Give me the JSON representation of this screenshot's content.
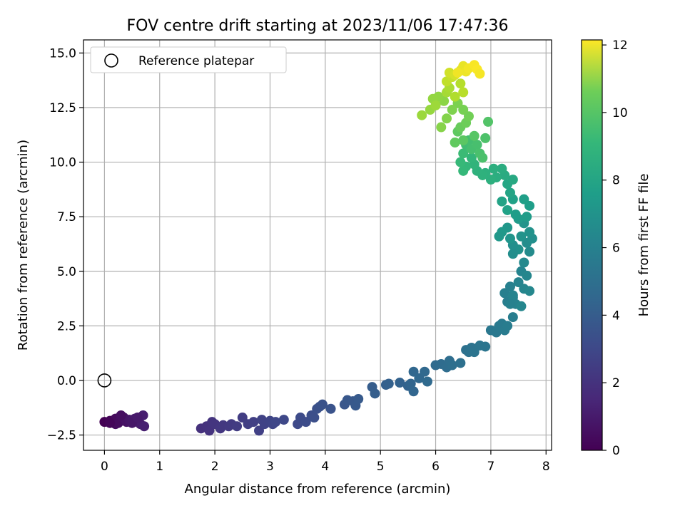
{
  "chart_data": {
    "type": "scatter",
    "title": "FOV centre drift starting at 2023/11/06 17:47:36",
    "xlabel": "Angular distance from reference (arcmin)",
    "ylabel": "Rotation from reference (arcmin)",
    "xlim": [
      -0.38,
      8.1
    ],
    "ylim": [
      -3.2,
      15.6
    ],
    "xticks": [
      0,
      1,
      2,
      3,
      4,
      5,
      6,
      7,
      8
    ],
    "yticks": [
      -2.5,
      0.0,
      2.5,
      5.0,
      7.5,
      10.0,
      12.5,
      15.0
    ],
    "xtick_labels": [
      "0",
      "1",
      "2",
      "3",
      "4",
      "5",
      "6",
      "7",
      "8"
    ],
    "ytick_labels": [
      "−2.5",
      "0.0",
      "2.5",
      "5.0",
      "7.5",
      "10.0",
      "12.5",
      "15.0"
    ],
    "grid": true,
    "legend": {
      "position": "upper-left",
      "entries": [
        "Reference platepar"
      ]
    },
    "reference_point": {
      "x": 0.0,
      "y": 0.0,
      "marker": "open-circle"
    },
    "colorbar": {
      "label": "Hours from first FF file",
      "colormap": "viridis",
      "range": [
        0,
        12.15
      ],
      "ticks": [
        0,
        2,
        4,
        6,
        8,
        10,
        12
      ],
      "tick_labels": [
        "0",
        "2",
        "4",
        "6",
        "8",
        "10",
        "12"
      ]
    },
    "series": [
      {
        "points": [
          {
            "x": 0.0,
            "y": -1.9,
            "c": 0.0
          },
          {
            "x": 0.1,
            "y": -1.85,
            "c": 0.1
          },
          {
            "x": 0.15,
            "y": -1.9,
            "c": 0.2
          },
          {
            "x": 0.2,
            "y": -1.75,
            "c": 0.3
          },
          {
            "x": 0.25,
            "y": -1.95,
            "c": 0.4
          },
          {
            "x": 0.3,
            "y": -1.8,
            "c": 0.5
          },
          {
            "x": 0.35,
            "y": -1.7,
            "c": 0.55
          },
          {
            "x": 0.4,
            "y": -1.9,
            "c": 0.6
          },
          {
            "x": 0.45,
            "y": -1.8,
            "c": 0.7
          },
          {
            "x": 0.5,
            "y": -1.85,
            "c": 0.8
          },
          {
            "x": 0.55,
            "y": -1.75,
            "c": 0.85
          },
          {
            "x": 0.6,
            "y": -1.9,
            "c": 0.9
          },
          {
            "x": 0.65,
            "y": -2.0,
            "c": 0.95
          },
          {
            "x": 0.7,
            "y": -1.6,
            "c": 1.0
          },
          {
            "x": 0.72,
            "y": -2.1,
            "c": 1.05
          },
          {
            "x": 0.2,
            "y": -2.0,
            "c": 0.35
          },
          {
            "x": 0.3,
            "y": -1.6,
            "c": 0.45
          },
          {
            "x": 0.5,
            "y": -1.95,
            "c": 0.75
          },
          {
            "x": 0.6,
            "y": -1.7,
            "c": 0.88
          },
          {
            "x": 0.1,
            "y": -1.95,
            "c": 0.15
          },
          {
            "x": 1.75,
            "y": -2.2,
            "c": 1.7
          },
          {
            "x": 1.85,
            "y": -2.1,
            "c": 1.75
          },
          {
            "x": 1.9,
            "y": -2.3,
            "c": 1.8
          },
          {
            "x": 1.95,
            "y": -1.9,
            "c": 1.85
          },
          {
            "x": 2.0,
            "y": -2.0,
            "c": 1.9
          },
          {
            "x": 2.1,
            "y": -2.2,
            "c": 1.95
          },
          {
            "x": 2.15,
            "y": -2.05,
            "c": 2.0
          },
          {
            "x": 2.25,
            "y": -2.1,
            "c": 2.05
          },
          {
            "x": 2.3,
            "y": -2.0,
            "c": 2.1
          },
          {
            "x": 2.4,
            "y": -2.1,
            "c": 2.15
          },
          {
            "x": 2.5,
            "y": -1.7,
            "c": 2.2
          },
          {
            "x": 2.6,
            "y": -2.0,
            "c": 2.25
          },
          {
            "x": 2.7,
            "y": -1.9,
            "c": 2.3
          },
          {
            "x": 2.8,
            "y": -2.3,
            "c": 2.35
          },
          {
            "x": 2.85,
            "y": -1.8,
            "c": 2.4
          },
          {
            "x": 2.9,
            "y": -2.0,
            "c": 2.45
          },
          {
            "x": 3.0,
            "y": -1.85,
            "c": 2.5
          },
          {
            "x": 3.05,
            "y": -2.0,
            "c": 2.55
          },
          {
            "x": 3.1,
            "y": -1.9,
            "c": 2.6
          },
          {
            "x": 3.25,
            "y": -1.8,
            "c": 2.65
          },
          {
            "x": 3.5,
            "y": -2.0,
            "c": 2.75
          },
          {
            "x": 3.55,
            "y": -1.7,
            "c": 2.8
          },
          {
            "x": 3.65,
            "y": -1.9,
            "c": 2.85
          },
          {
            "x": 3.75,
            "y": -1.6,
            "c": 2.9
          },
          {
            "x": 3.8,
            "y": -1.7,
            "c": 2.95
          },
          {
            "x": 3.85,
            "y": -1.3,
            "c": 3.0
          },
          {
            "x": 3.9,
            "y": -1.2,
            "c": 3.05
          },
          {
            "x": 3.95,
            "y": -1.1,
            "c": 3.1
          },
          {
            "x": 4.1,
            "y": -1.3,
            "c": 3.15
          },
          {
            "x": 4.35,
            "y": -1.1,
            "c": 3.25
          },
          {
            "x": 4.4,
            "y": -0.9,
            "c": 3.3
          },
          {
            "x": 4.5,
            "y": -0.95,
            "c": 3.35
          },
          {
            "x": 4.55,
            "y": -1.15,
            "c": 3.4
          },
          {
            "x": 4.6,
            "y": -0.85,
            "c": 3.45
          },
          {
            "x": 4.85,
            "y": -0.3,
            "c": 3.55
          },
          {
            "x": 4.9,
            "y": -0.6,
            "c": 3.6
          },
          {
            "x": 5.1,
            "y": -0.2,
            "c": 3.7
          },
          {
            "x": 5.15,
            "y": -0.15,
            "c": 3.75
          },
          {
            "x": 5.35,
            "y": -0.1,
            "c": 3.8
          },
          {
            "x": 5.5,
            "y": -0.25,
            "c": 3.85
          },
          {
            "x": 5.55,
            "y": -0.15,
            "c": 3.9
          },
          {
            "x": 5.6,
            "y": -0.5,
            "c": 3.95
          },
          {
            "x": 5.6,
            "y": 0.4,
            "c": 4.0
          },
          {
            "x": 5.7,
            "y": 0.1,
            "c": 4.05
          },
          {
            "x": 5.8,
            "y": 0.4,
            "c": 4.1
          },
          {
            "x": 5.85,
            "y": -0.05,
            "c": 4.15
          },
          {
            "x": 6.0,
            "y": 0.7,
            "c": 4.2
          },
          {
            "x": 6.1,
            "y": 0.75,
            "c": 4.25
          },
          {
            "x": 6.2,
            "y": 0.6,
            "c": 4.3
          },
          {
            "x": 6.25,
            "y": 0.9,
            "c": 4.35
          },
          {
            "x": 6.3,
            "y": 0.7,
            "c": 4.4
          },
          {
            "x": 6.45,
            "y": 0.8,
            "c": 4.45
          },
          {
            "x": 6.55,
            "y": 1.4,
            "c": 4.5
          },
          {
            "x": 6.6,
            "y": 1.3,
            "c": 4.55
          },
          {
            "x": 6.65,
            "y": 1.5,
            "c": 4.6
          },
          {
            "x": 6.7,
            "y": 1.3,
            "c": 4.65
          },
          {
            "x": 6.8,
            "y": 1.6,
            "c": 4.7
          },
          {
            "x": 6.9,
            "y": 1.55,
            "c": 4.75
          },
          {
            "x": 7.0,
            "y": 2.3,
            "c": 4.85
          },
          {
            "x": 7.1,
            "y": 2.2,
            "c": 4.9
          },
          {
            "x": 7.15,
            "y": 2.5,
            "c": 4.95
          },
          {
            "x": 7.2,
            "y": 2.6,
            "c": 5.0
          },
          {
            "x": 7.25,
            "y": 2.3,
            "c": 5.05
          },
          {
            "x": 7.3,
            "y": 2.5,
            "c": 5.1
          },
          {
            "x": 7.4,
            "y": 2.9,
            "c": 5.15
          },
          {
            "x": 7.3,
            "y": 3.6,
            "c": 5.2
          },
          {
            "x": 7.25,
            "y": 4.0,
            "c": 5.25
          },
          {
            "x": 7.35,
            "y": 4.3,
            "c": 5.3
          },
          {
            "x": 7.4,
            "y": 3.8,
            "c": 5.35
          },
          {
            "x": 7.45,
            "y": 3.5,
            "c": 5.4
          },
          {
            "x": 7.5,
            "y": 4.5,
            "c": 5.45
          },
          {
            "x": 7.55,
            "y": 5.0,
            "c": 5.5
          },
          {
            "x": 7.6,
            "y": 4.2,
            "c": 5.55
          },
          {
            "x": 7.65,
            "y": 4.8,
            "c": 5.6
          },
          {
            "x": 7.7,
            "y": 4.1,
            "c": 5.65
          },
          {
            "x": 7.55,
            "y": 3.4,
            "c": 5.6
          },
          {
            "x": 7.4,
            "y": 3.9,
            "c": 5.45
          },
          {
            "x": 7.35,
            "y": 3.5,
            "c": 5.35
          },
          {
            "x": 7.6,
            "y": 5.4,
            "c": 5.75
          },
          {
            "x": 7.7,
            "y": 5.9,
            "c": 5.85
          },
          {
            "x": 7.65,
            "y": 6.3,
            "c": 5.95
          },
          {
            "x": 7.75,
            "y": 6.5,
            "c": 6.05
          },
          {
            "x": 7.7,
            "y": 6.8,
            "c": 6.15
          },
          {
            "x": 7.6,
            "y": 7.2,
            "c": 6.25
          },
          {
            "x": 7.55,
            "y": 6.6,
            "c": 6.2
          },
          {
            "x": 7.5,
            "y": 6.0,
            "c": 6.1
          },
          {
            "x": 7.4,
            "y": 5.8,
            "c": 6.0
          },
          {
            "x": 7.4,
            "y": 6.2,
            "c": 6.05
          },
          {
            "x": 7.35,
            "y": 6.5,
            "c": 6.3
          },
          {
            "x": 7.3,
            "y": 7.0,
            "c": 6.4
          },
          {
            "x": 7.2,
            "y": 6.8,
            "c": 6.5
          },
          {
            "x": 7.15,
            "y": 6.6,
            "c": 6.45
          },
          {
            "x": 7.5,
            "y": 7.4,
            "c": 6.6
          },
          {
            "x": 7.65,
            "y": 7.5,
            "c": 6.65
          },
          {
            "x": 7.7,
            "y": 8.0,
            "c": 6.75
          },
          {
            "x": 7.6,
            "y": 8.3,
            "c": 6.8
          },
          {
            "x": 7.45,
            "y": 7.6,
            "c": 6.7
          },
          {
            "x": 7.4,
            "y": 8.3,
            "c": 6.9
          },
          {
            "x": 7.3,
            "y": 7.8,
            "c": 6.95
          },
          {
            "x": 7.2,
            "y": 8.2,
            "c": 7.0
          },
          {
            "x": 7.35,
            "y": 8.6,
            "c": 7.1
          },
          {
            "x": 7.3,
            "y": 9.0,
            "c": 7.2
          },
          {
            "x": 7.4,
            "y": 9.2,
            "c": 7.3
          },
          {
            "x": 7.25,
            "y": 9.4,
            "c": 7.4
          },
          {
            "x": 7.2,
            "y": 9.7,
            "c": 7.5
          },
          {
            "x": 7.1,
            "y": 9.3,
            "c": 7.55
          },
          {
            "x": 7.05,
            "y": 9.7,
            "c": 7.6
          },
          {
            "x": 7.0,
            "y": 9.2,
            "c": 7.65
          },
          {
            "x": 6.9,
            "y": 9.5,
            "c": 7.7
          },
          {
            "x": 6.85,
            "y": 9.4,
            "c": 7.75
          },
          {
            "x": 6.75,
            "y": 9.6,
            "c": 7.8
          },
          {
            "x": 6.7,
            "y": 9.9,
            "c": 7.9
          },
          {
            "x": 6.65,
            "y": 10.2,
            "c": 8.0
          },
          {
            "x": 6.55,
            "y": 9.8,
            "c": 8.05
          },
          {
            "x": 6.5,
            "y": 9.6,
            "c": 8.1
          },
          {
            "x": 6.45,
            "y": 10.0,
            "c": 8.15
          },
          {
            "x": 6.5,
            "y": 10.4,
            "c": 8.25
          },
          {
            "x": 6.55,
            "y": 10.8,
            "c": 8.35
          },
          {
            "x": 6.6,
            "y": 11.0,
            "c": 8.45
          },
          {
            "x": 6.65,
            "y": 10.6,
            "c": 8.5
          },
          {
            "x": 6.75,
            "y": 10.8,
            "c": 8.55
          },
          {
            "x": 6.8,
            "y": 10.4,
            "c": 8.6
          },
          {
            "x": 6.85,
            "y": 10.2,
            "c": 8.65
          },
          {
            "x": 6.9,
            "y": 11.1,
            "c": 8.7
          },
          {
            "x": 6.95,
            "y": 11.85,
            "c": 8.8
          },
          {
            "x": 6.7,
            "y": 11.2,
            "c": 8.9
          },
          {
            "x": 6.5,
            "y": 11.0,
            "c": 9.0
          },
          {
            "x": 6.4,
            "y": 11.4,
            "c": 9.1
          },
          {
            "x": 6.35,
            "y": 10.9,
            "c": 9.15
          },
          {
            "x": 6.45,
            "y": 11.6,
            "c": 9.3
          },
          {
            "x": 6.55,
            "y": 11.8,
            "c": 9.4
          },
          {
            "x": 6.6,
            "y": 12.1,
            "c": 9.5
          },
          {
            "x": 6.5,
            "y": 12.4,
            "c": 9.6
          },
          {
            "x": 6.4,
            "y": 12.7,
            "c": 9.7
          },
          {
            "x": 6.3,
            "y": 12.4,
            "c": 9.75
          },
          {
            "x": 6.2,
            "y": 12.0,
            "c": 9.85
          },
          {
            "x": 6.1,
            "y": 11.6,
            "c": 9.9
          },
          {
            "x": 6.15,
            "y": 12.8,
            "c": 10.0
          },
          {
            "x": 6.05,
            "y": 13.0,
            "c": 10.1
          },
          {
            "x": 5.95,
            "y": 12.9,
            "c": 10.15
          },
          {
            "x": 5.9,
            "y": 12.4,
            "c": 10.2
          },
          {
            "x": 5.75,
            "y": 12.15,
            "c": 10.3
          },
          {
            "x": 6.0,
            "y": 12.6,
            "c": 10.35
          },
          {
            "x": 6.2,
            "y": 13.2,
            "c": 10.5
          },
          {
            "x": 6.25,
            "y": 13.4,
            "c": 10.6
          },
          {
            "x": 6.35,
            "y": 13.0,
            "c": 10.7
          },
          {
            "x": 6.45,
            "y": 13.6,
            "c": 10.8
          },
          {
            "x": 6.5,
            "y": 13.2,
            "c": 10.85
          },
          {
            "x": 6.2,
            "y": 13.7,
            "c": 11.0
          },
          {
            "x": 6.3,
            "y": 13.9,
            "c": 11.1
          },
          {
            "x": 6.25,
            "y": 14.1,
            "c": 11.3
          },
          {
            "x": 6.35,
            "y": 14.0,
            "c": 11.4
          },
          {
            "x": 6.45,
            "y": 14.2,
            "c": 11.6
          },
          {
            "x": 6.5,
            "y": 14.4,
            "c": 11.75
          },
          {
            "x": 6.55,
            "y": 14.15,
            "c": 11.85
          },
          {
            "x": 6.6,
            "y": 14.3,
            "c": 11.95
          },
          {
            "x": 6.7,
            "y": 14.45,
            "c": 12.05
          },
          {
            "x": 6.75,
            "y": 14.25,
            "c": 12.1
          },
          {
            "x": 6.8,
            "y": 14.05,
            "c": 12.0
          },
          {
            "x": 6.4,
            "y": 14.1,
            "c": 11.9
          }
        ]
      }
    ]
  }
}
